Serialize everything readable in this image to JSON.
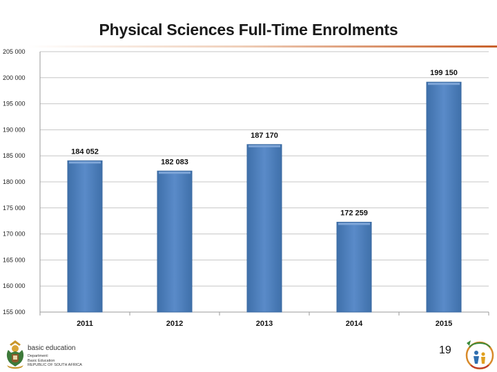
{
  "slide": {
    "title": "Physical Sciences Full-Time Enrolments",
    "page_number": "19"
  },
  "footer": {
    "logo_main": "basic education",
    "logo_sub": [
      "Department:",
      "Basic Education",
      "REPUBLIC OF SOUTH AFRICA"
    ]
  },
  "colors": {
    "bar": "#4f81bd",
    "bar_dark": "#3b6aa0",
    "bar_light": "#7fa6d8",
    "title_rule": "#c8602a",
    "grid": "#c6c6c6"
  },
  "chart_data": {
    "type": "bar",
    "title": "Physical Sciences Full-Time Enrolments",
    "xlabel": "",
    "ylabel": "",
    "categories": [
      "2011",
      "2012",
      "2013",
      "2014",
      "2015"
    ],
    "values": [
      184052,
      182083,
      187170,
      172259,
      199150
    ],
    "data_labels": [
      "184 052",
      "182 083",
      "187 170",
      "172 259",
      "199 150"
    ],
    "ylim": [
      155000,
      205000
    ],
    "yticks": [
      155000,
      160000,
      165000,
      170000,
      175000,
      180000,
      185000,
      190000,
      195000,
      200000,
      205000
    ],
    "ytick_labels": [
      "155 000",
      "160 000",
      "165 000",
      "170 000",
      "175 000",
      "180 000",
      "185 000",
      "190 000",
      "195 000",
      "200 000",
      "205 000"
    ],
    "grid": true,
    "legend": "none"
  }
}
